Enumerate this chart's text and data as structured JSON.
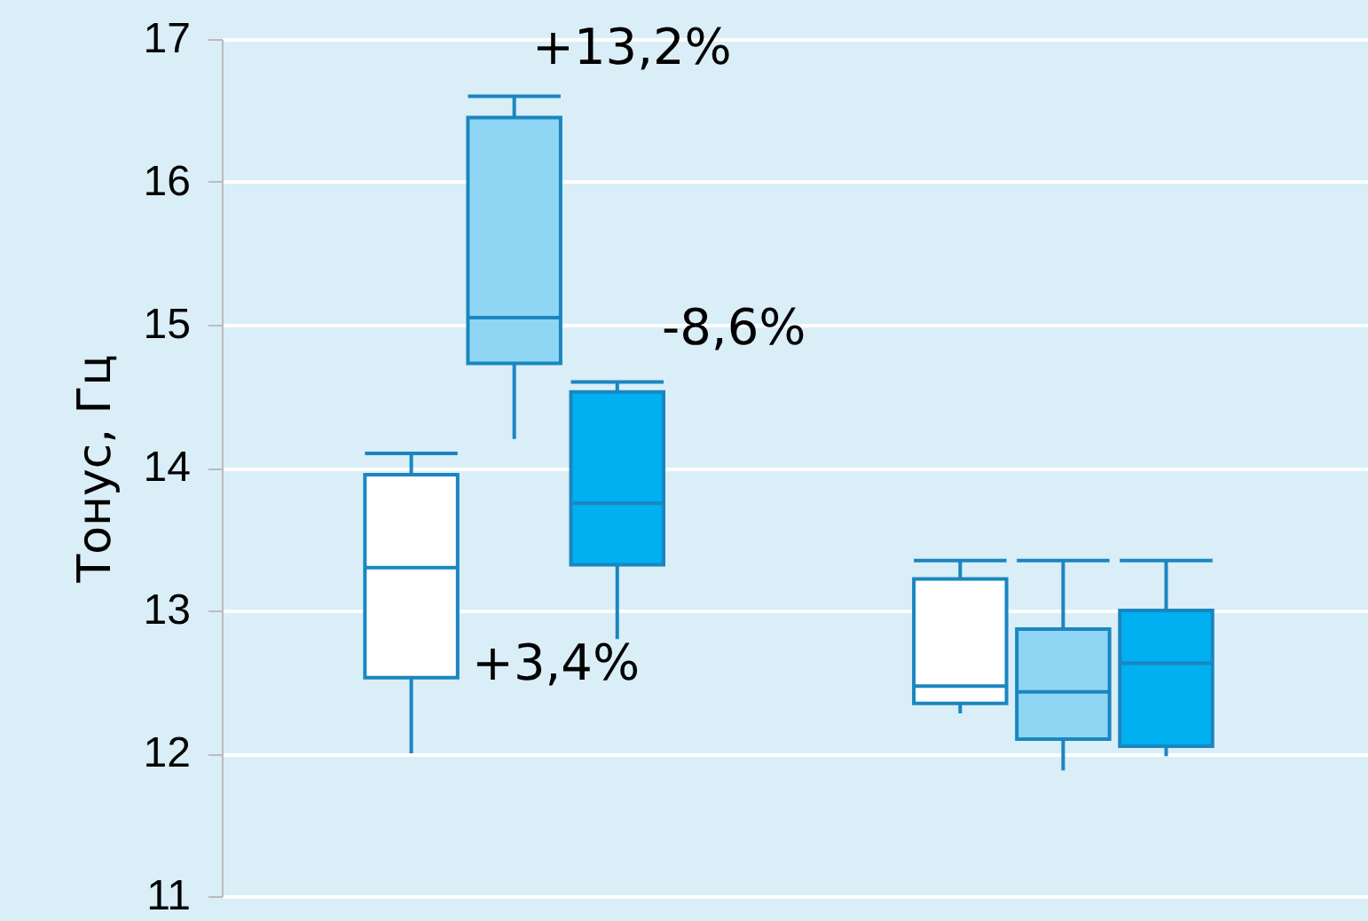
{
  "chart_data": {
    "type": "box",
    "ylabel": "Тонус, Гц",
    "categories": [
      null,
      null
    ],
    "ylim": [
      11,
      17
    ],
    "yticks": [
      11,
      12,
      13,
      14,
      15,
      16,
      17
    ],
    "grid": "y",
    "tick_labels": "y",
    "legend": false,
    "series": [
      {
        "color": "#ffffff",
        "boxes": [
          {
            "low": 12.0,
            "q1": 12.53,
            "median": 13.3,
            "q3": 13.95,
            "high": 14.1
          },
          {
            "low": 12.28,
            "q1": 12.35,
            "median": 12.47,
            "q3": 13.22,
            "high": 13.35
          }
        ]
      },
      {
        "color": "#8fd6f5",
        "boxes": [
          {
            "low": 14.2,
            "q1": 14.73,
            "median": 15.05,
            "q3": 16.45,
            "high": 16.6
          },
          {
            "low": 11.88,
            "q1": 12.1,
            "median": 12.43,
            "q3": 12.87,
            "high": 13.35
          }
        ]
      },
      {
        "color": "#00b0f0",
        "boxes": [
          {
            "low": 12.8,
            "q1": 13.32,
            "median": 13.75,
            "q3": 14.53,
            "high": 14.6
          },
          {
            "low": 11.98,
            "q1": 12.05,
            "median": 12.63,
            "q3": 13.0,
            "high": 13.35
          }
        ]
      }
    ],
    "annotations": [
      "+3,4%",
      "+13,2%",
      "-8,6%"
    ]
  }
}
